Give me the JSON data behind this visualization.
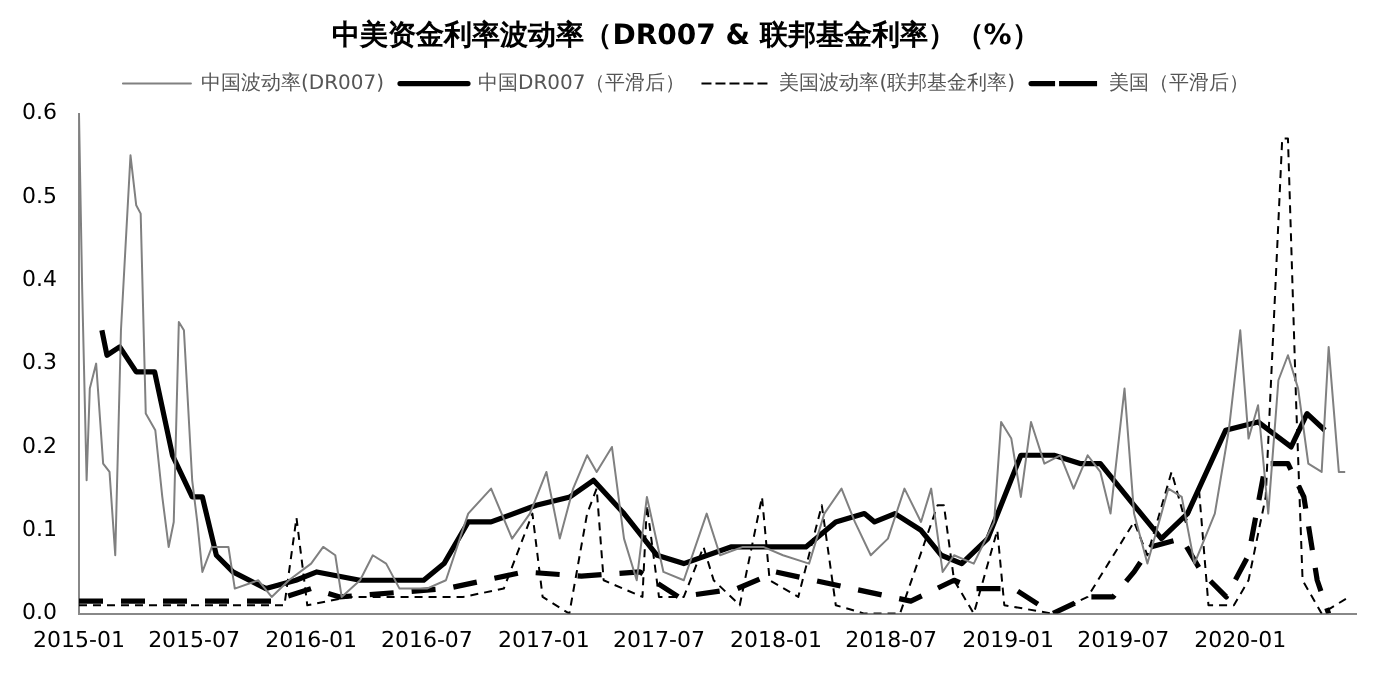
{
  "chart_data": {
    "type": "line",
    "title": "中美资金利率波动率（DR007 & 联邦基金利率）（%）",
    "xlim": [
      "2015-01",
      "2020-07"
    ],
    "xticks": [
      "2015-01",
      "2015-07",
      "2016-01",
      "2016-07",
      "2017-01",
      "2017-07",
      "2018-01",
      "2018-07",
      "2019-01",
      "2019-07",
      "2020-01"
    ],
    "ylim": [
      0,
      0.6
    ],
    "yticks": [
      {
        "value": 0,
        "label": "0.0"
      },
      {
        "value": 0.1,
        "label": "0.1"
      },
      {
        "value": 0.2,
        "label": "0.2"
      },
      {
        "value": 0.3,
        "label": "0.3"
      },
      {
        "value": 0.4,
        "label": "0.4"
      },
      {
        "value": 0.5,
        "label": "0.5"
      },
      {
        "value": 0.6,
        "label": "0.6"
      }
    ],
    "grid": false,
    "legend": "top",
    "marker": "none",
    "series": [
      {
        "name": "中国波动率(DR007)",
        "color": "#808080",
        "line_style": "solid",
        "x": [
          "2015-01-01",
          "2015-01-06",
          "2015-01-13",
          "2015-01-18",
          "2015-01-28",
          "2015-02-08",
          "2015-02-18",
          "2015-02-27",
          "2015-03-08",
          "2015-03-23",
          "2015-04-01",
          "2015-04-08",
          "2015-04-16",
          "2015-05-01",
          "2015-05-12",
          "2015-05-22",
          "2015-05-30",
          "2015-06-07",
          "2015-06-15",
          "2015-06-28",
          "2015-07-06",
          "2015-07-14",
          "2015-07-29",
          "2015-08-24",
          "2015-09-03",
          "2015-10-10",
          "2015-10-31",
          "2015-11-27",
          "2016-01-01",
          "2016-01-20",
          "2016-02-08",
          "2016-02-18",
          "2016-03-18",
          "2016-04-07",
          "2016-04-28",
          "2016-05-19",
          "2016-07-01",
          "2016-07-31",
          "2016-09-04",
          "2016-10-10",
          "2016-11-12",
          "2016-12-10",
          "2017-01-05",
          "2017-01-26",
          "2017-02-16",
          "2017-03-10",
          "2017-03-25",
          "2017-04-18",
          "2017-05-07",
          "2017-05-27",
          "2017-06-12",
          "2017-07-08",
          "2017-08-09",
          "2017-09-14",
          "2017-10-05",
          "2017-11-10",
          "2017-12-12",
          "2018-01-12",
          "2018-02-22",
          "2018-03-18",
          "2018-04-14",
          "2018-05-05",
          "2018-05-30",
          "2018-06-26",
          "2018-07-22",
          "2018-08-17",
          "2018-09-02",
          "2018-09-20",
          "2018-10-08",
          "2018-11-08",
          "2018-12-10",
          "2018-12-21",
          "2019-01-06",
          "2019-01-21",
          "2019-02-06",
          "2019-02-27",
          "2019-03-24",
          "2019-04-14",
          "2019-05-06",
          "2019-05-26",
          "2019-06-11",
          "2019-07-03",
          "2019-07-18",
          "2019-08-08",
          "2019-09-10",
          "2019-10-01",
          "2019-10-21",
          "2019-11-22",
          "2019-12-14",
          "2020-01-01",
          "2020-01-14",
          "2020-01-29",
          "2020-02-14",
          "2020-03-01",
          "2020-03-16",
          "2020-04-01",
          "2020-04-17",
          "2020-05-08",
          "2020-05-19",
          "2020-06-04",
          "2020-06-14"
        ],
        "values": [
          0.6,
          0.39,
          0.16,
          0.27,
          0.3,
          0.18,
          0.17,
          0.07,
          0.34,
          0.55,
          0.49,
          0.48,
          0.24,
          0.22,
          0.14,
          0.08,
          0.11,
          0.35,
          0.34,
          0.16,
          0.11,
          0.05,
          0.08,
          0.08,
          0.03,
          0.04,
          0.02,
          0.04,
          0.06,
          0.08,
          0.07,
          0.02,
          0.04,
          0.07,
          0.06,
          0.03,
          0.03,
          0.04,
          0.12,
          0.15,
          0.09,
          0.12,
          0.17,
          0.09,
          0.15,
          0.19,
          0.17,
          0.2,
          0.09,
          0.04,
          0.14,
          0.05,
          0.04,
          0.12,
          0.07,
          0.08,
          0.08,
          0.07,
          0.06,
          0.12,
          0.15,
          0.11,
          0.07,
          0.09,
          0.15,
          0.11,
          0.15,
          0.05,
          0.07,
          0.06,
          0.11,
          0.23,
          0.21,
          0.14,
          0.23,
          0.18,
          0.19,
          0.15,
          0.19,
          0.17,
          0.12,
          0.27,
          0.12,
          0.06,
          0.15,
          0.14,
          0.06,
          0.12,
          0.22,
          0.34,
          0.21,
          0.25,
          0.12,
          0.28,
          0.31,
          0.27,
          0.18,
          0.17,
          0.32,
          0.17,
          0.17
        ]
      },
      {
        "name": "中国DR007（平滑后）",
        "color": "#000000",
        "line_style": "solid",
        "x": [
          "2015-02-06",
          "2015-02-14",
          "2015-03-06",
          "2015-04-01",
          "2015-04-30",
          "2015-05-28",
          "2015-06-28",
          "2015-07-14",
          "2015-08-05",
          "2015-08-31",
          "2015-10-22",
          "2015-12-08",
          "2016-01-10",
          "2016-03-18",
          "2016-05-19",
          "2016-06-26",
          "2016-07-28",
          "2016-09-04",
          "2016-10-10",
          "2016-12-20",
          "2017-02-11",
          "2017-03-20",
          "2017-05-07",
          "2017-06-28",
          "2017-08-09",
          "2017-10-22",
          "2018-02-17",
          "2018-04-05",
          "2018-05-20",
          "2018-06-05",
          "2018-07-07",
          "2018-08-17",
          "2018-09-18",
          "2018-10-20",
          "2018-11-30",
          "2019-01-21",
          "2019-03-14",
          "2019-04-24",
          "2019-05-26",
          "2019-07-18",
          "2019-08-30",
          "2019-10-10",
          "2019-12-09",
          "2020-01-29",
          "2020-03-21",
          "2020-04-15",
          "2020-05-13"
        ],
        "values": [
          0.34,
          0.31,
          0.32,
          0.29,
          0.29,
          0.19,
          0.14,
          0.14,
          0.07,
          0.05,
          0.03,
          0.04,
          0.05,
          0.04,
          0.04,
          0.04,
          0.06,
          0.11,
          0.11,
          0.13,
          0.14,
          0.16,
          0.12,
          0.07,
          0.06,
          0.08,
          0.08,
          0.11,
          0.12,
          0.11,
          0.12,
          0.1,
          0.07,
          0.06,
          0.09,
          0.19,
          0.19,
          0.18,
          0.18,
          0.13,
          0.09,
          0.12,
          0.22,
          0.23,
          0.2,
          0.24,
          0.22
        ]
      },
      {
        "name": "美国波动率(联邦基金利率)",
        "color": "#000000",
        "line_style": "dashed",
        "x": [
          "2015-01-01",
          "2015-06-01",
          "2015-11-20",
          "2015-12-09",
          "2015-12-26",
          "2016-03-01",
          "2016-08-27",
          "2016-10-30",
          "2016-12-14",
          "2016-12-30",
          "2017-02-10",
          "2017-03-10",
          "2017-03-25",
          "2017-04-05",
          "2017-06-05",
          "2017-06-12",
          "2017-07-01",
          "2017-08-09",
          "2017-09-09",
          "2017-09-25",
          "2017-11-05",
          "2017-12-10",
          "2017-12-22",
          "2018-02-05",
          "2018-03-14",
          "2018-04-05",
          "2018-05-20",
          "2018-07-15",
          "2018-09-12",
          "2018-09-22",
          "2018-10-08",
          "2018-11-08",
          "2018-12-15",
          "2018-12-26",
          "2019-03-12",
          "2019-05-06",
          "2019-07-18",
          "2019-08-08",
          "2019-09-15",
          "2019-10-07",
          "2019-10-28",
          "2019-11-12",
          "2019-12-22",
          "2020-01-14",
          "2020-02-10",
          "2020-03-07",
          "2020-03-16",
          "2020-03-29",
          "2020-04-08",
          "2020-05-08",
          "2020-06-20"
        ],
        "values": [
          0.01,
          0.01,
          0.01,
          0.115,
          0.01,
          0.02,
          0.02,
          0.03,
          0.12,
          0.02,
          0.0,
          0.12,
          0.15,
          0.04,
          0.02,
          0.13,
          0.02,
          0.02,
          0.08,
          0.04,
          0.01,
          0.14,
          0.04,
          0.02,
          0.13,
          0.01,
          0.0,
          0.0,
          0.13,
          0.13,
          0.04,
          0.0,
          0.1,
          0.01,
          0.0,
          0.02,
          0.11,
          0.07,
          0.17,
          0.11,
          0.15,
          0.01,
          0.01,
          0.04,
          0.14,
          0.57,
          0.57,
          0.25,
          0.04,
          0.0,
          0.02
        ]
      },
      {
        "name": "美国（平滑后）",
        "color": "#000000",
        "line_style": "dashed",
        "x": [
          "2015-01-01",
          "2015-11-01",
          "2016-01-01",
          "2016-02-15",
          "2016-08-01",
          "2016-12-01",
          "2017-03-01",
          "2017-06-01",
          "2017-08-01",
          "2017-11-01",
          "2018-01-01",
          "2018-03-01",
          "2018-05-01",
          "2018-08-01",
          "2018-10-08",
          "2018-11-08",
          "2019-01-10",
          "2019-03-12",
          "2019-05-06",
          "2019-06-15",
          "2019-07-18",
          "2019-08-13",
          "2019-10-01",
          "2019-11-01",
          "2019-12-10",
          "2020-01-14",
          "2020-02-10",
          "2020-03-16",
          "2020-04-10",
          "2020-05-01",
          "2020-05-19"
        ],
        "values": [
          0.015,
          0.015,
          0.03,
          0.02,
          0.03,
          0.05,
          0.045,
          0.05,
          0.02,
          0.03,
          0.05,
          0.04,
          0.03,
          0.015,
          0.04,
          0.03,
          0.03,
          0.0,
          0.02,
          0.02,
          0.05,
          0.08,
          0.09,
          0.05,
          0.02,
          0.07,
          0.18,
          0.18,
          0.14,
          0.04,
          0.0
        ]
      }
    ]
  }
}
